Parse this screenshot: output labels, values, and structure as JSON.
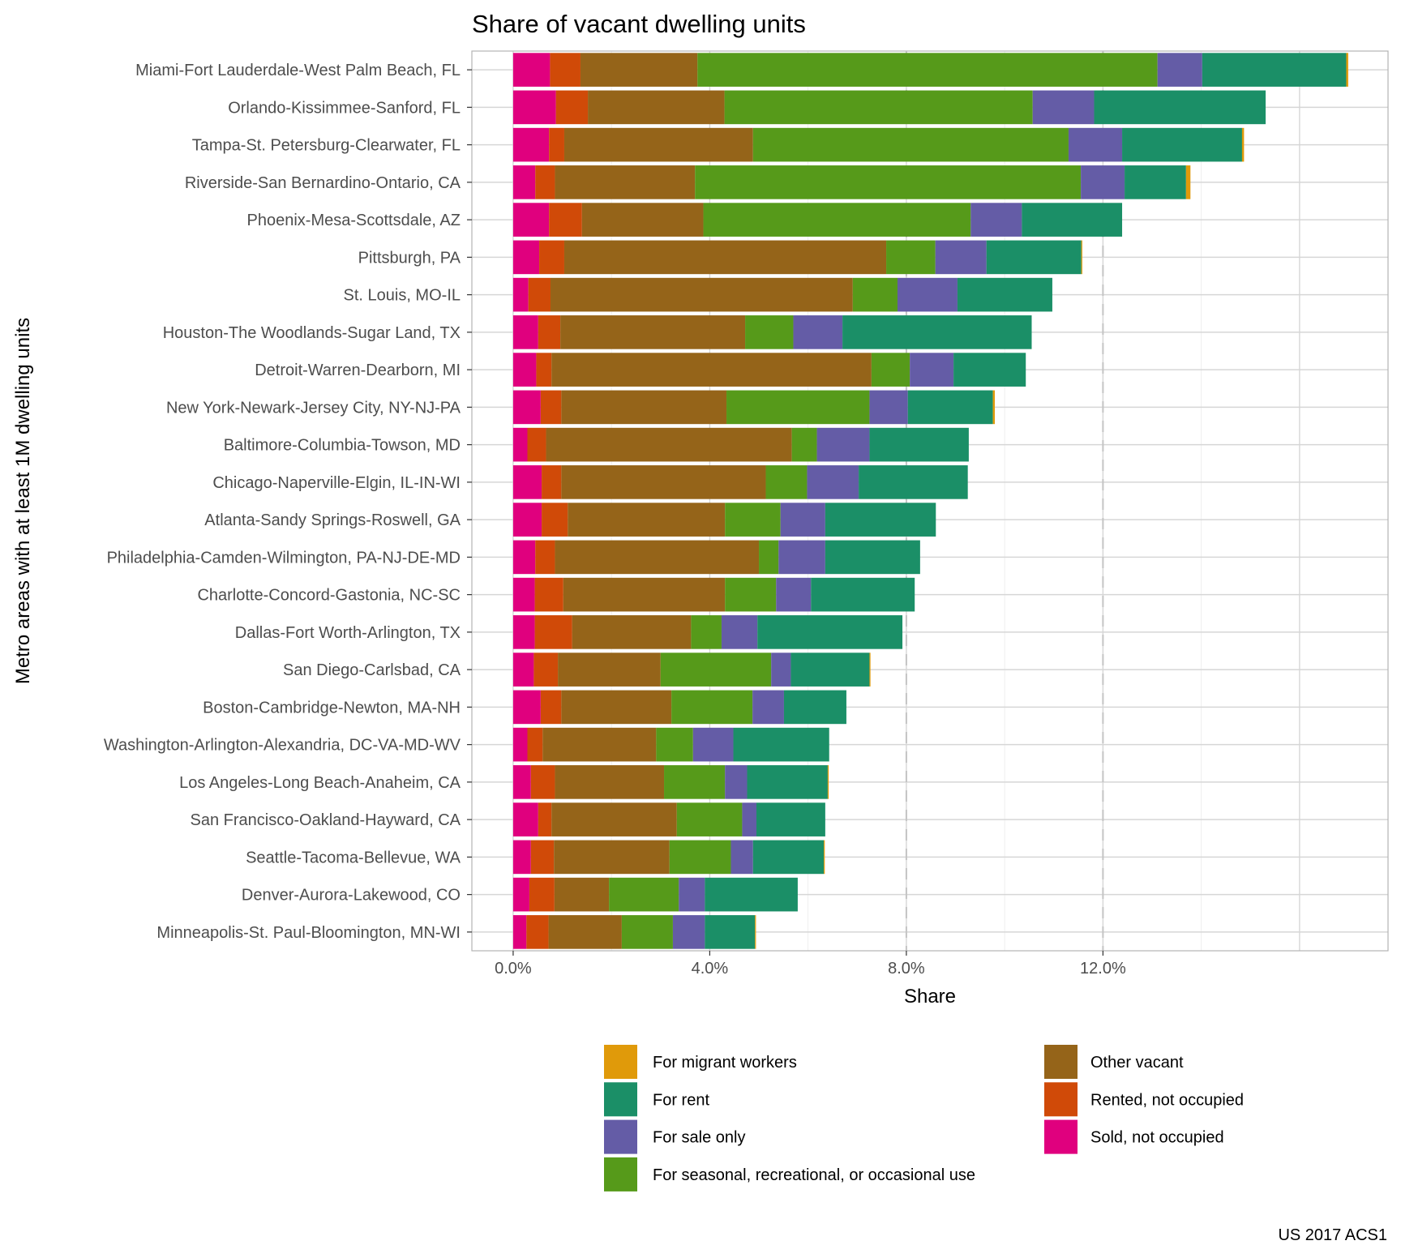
{
  "chart_data": {
    "type": "bar",
    "orientation": "horizontal",
    "stacked": true,
    "title": "Share of vacant dwelling units",
    "xlabel": "Share",
    "ylabel": "Metro areas with at least 1M dwelling units",
    "caption": "US 2017 ACS1",
    "xlim": [
      -0.84,
      17.8
    ],
    "x_unit": "percent",
    "x_ticks": [
      0,
      4,
      8,
      12
    ],
    "x_tick_labels": [
      "0.0%",
      "4.0%",
      "8.0%",
      "12.0%"
    ],
    "x_gridlines": [
      0,
      2,
      4,
      6,
      8,
      10,
      12,
      14,
      16
    ],
    "reference_lines_dashed": [
      8,
      12
    ],
    "grid": true,
    "legend_placement": "bottom",
    "categories": [
      "Miami-Fort Lauderdale-West Palm Beach, FL",
      "Orlando-Kissimmee-Sanford, FL",
      "Tampa-St. Petersburg-Clearwater, FL",
      "Riverside-San Bernardino-Ontario, CA",
      "Phoenix-Mesa-Scottsdale, AZ",
      "Pittsburgh, PA",
      "St. Louis, MO-IL",
      "Houston-The Woodlands-Sugar Land, TX",
      "Detroit-Warren-Dearborn, MI",
      "New York-Newark-Jersey City, NY-NJ-PA",
      "Baltimore-Columbia-Towson, MD",
      "Chicago-Naperville-Elgin, IL-IN-WI",
      "Atlanta-Sandy Springs-Roswell, GA",
      "Philadelphia-Camden-Wilmington, PA-NJ-DE-MD",
      "Charlotte-Concord-Gastonia, NC-SC",
      "Dallas-Fort Worth-Arlington, TX",
      "San Diego-Carlsbad, CA",
      "Boston-Cambridge-Newton, MA-NH",
      "Washington-Arlington-Alexandria, DC-VA-MD-WV",
      "Los Angeles-Long Beach-Anaheim, CA",
      "San Francisco-Oakland-Hayward, CA",
      "Seattle-Tacoma-Bellevue, WA",
      "Denver-Aurora-Lakewood, CO",
      "Minneapolis-St. Paul-Bloomington, MN-WI"
    ],
    "series": [
      {
        "name": "Sold, not occupied",
        "color": "#E0007E",
        "values": [
          0.75,
          0.87,
          0.73,
          0.45,
          0.73,
          0.53,
          0.31,
          0.51,
          0.47,
          0.56,
          0.29,
          0.58,
          0.58,
          0.45,
          0.44,
          0.44,
          0.42,
          0.56,
          0.29,
          0.36,
          0.51,
          0.36,
          0.33,
          0.27
        ]
      },
      {
        "name": "Rented, not occupied",
        "color": "#D04A08",
        "values": [
          0.62,
          0.65,
          0.31,
          0.4,
          0.67,
          0.51,
          0.45,
          0.45,
          0.31,
          0.42,
          0.38,
          0.4,
          0.53,
          0.4,
          0.58,
          0.76,
          0.49,
          0.42,
          0.31,
          0.49,
          0.27,
          0.47,
          0.51,
          0.45
        ]
      },
      {
        "name": "Other vacant",
        "color": "#956419",
        "values": [
          2.38,
          2.78,
          3.84,
          2.85,
          2.47,
          6.55,
          6.15,
          3.76,
          6.51,
          3.36,
          5.0,
          4.16,
          3.2,
          4.15,
          3.29,
          2.42,
          2.09,
          2.24,
          2.31,
          2.22,
          2.55,
          2.35,
          1.11,
          1.49
        ]
      },
      {
        "name": "For seasonal, recreational, or occasional use",
        "color": "#569A1A",
        "values": [
          9.36,
          6.27,
          6.42,
          7.85,
          5.44,
          1.0,
          0.91,
          0.98,
          0.78,
          2.91,
          0.51,
          0.84,
          1.13,
          0.4,
          1.04,
          0.62,
          2.25,
          1.65,
          0.75,
          1.24,
          1.33,
          1.25,
          1.42,
          1.04
        ]
      },
      {
        "name": "For sale only",
        "color": "#645CA6",
        "values": [
          0.91,
          1.25,
          1.09,
          0.89,
          1.04,
          1.04,
          1.22,
          1.0,
          0.89,
          0.78,
          1.07,
          1.05,
          0.91,
          0.95,
          0.71,
          0.73,
          0.4,
          0.64,
          0.82,
          0.45,
          0.29,
          0.45,
          0.53,
          0.65
        ]
      },
      {
        "name": "For rent",
        "color": "#1B8F67",
        "values": [
          2.93,
          3.49,
          2.44,
          1.25,
          2.04,
          1.93,
          1.93,
          3.85,
          1.47,
          1.73,
          2.02,
          2.22,
          2.25,
          1.93,
          2.11,
          2.95,
          1.6,
          1.27,
          1.95,
          1.64,
          1.4,
          1.44,
          1.89,
          1.02
        ]
      },
      {
        "name": "For migrant workers",
        "color": "#E09A0A",
        "values": [
          0.04,
          0,
          0.04,
          0.09,
          0,
          0.02,
          0,
          0,
          0,
          0.04,
          0,
          0,
          0,
          0,
          0,
          0,
          0.02,
          0,
          0,
          0.02,
          0,
          0.02,
          0,
          0.02
        ]
      }
    ],
    "legend_order": [
      "For migrant workers",
      "For rent",
      "For sale only",
      "For seasonal, recreational, or occasional use",
      "Other vacant",
      "Rented, not occupied",
      "Sold, not occupied"
    ]
  }
}
